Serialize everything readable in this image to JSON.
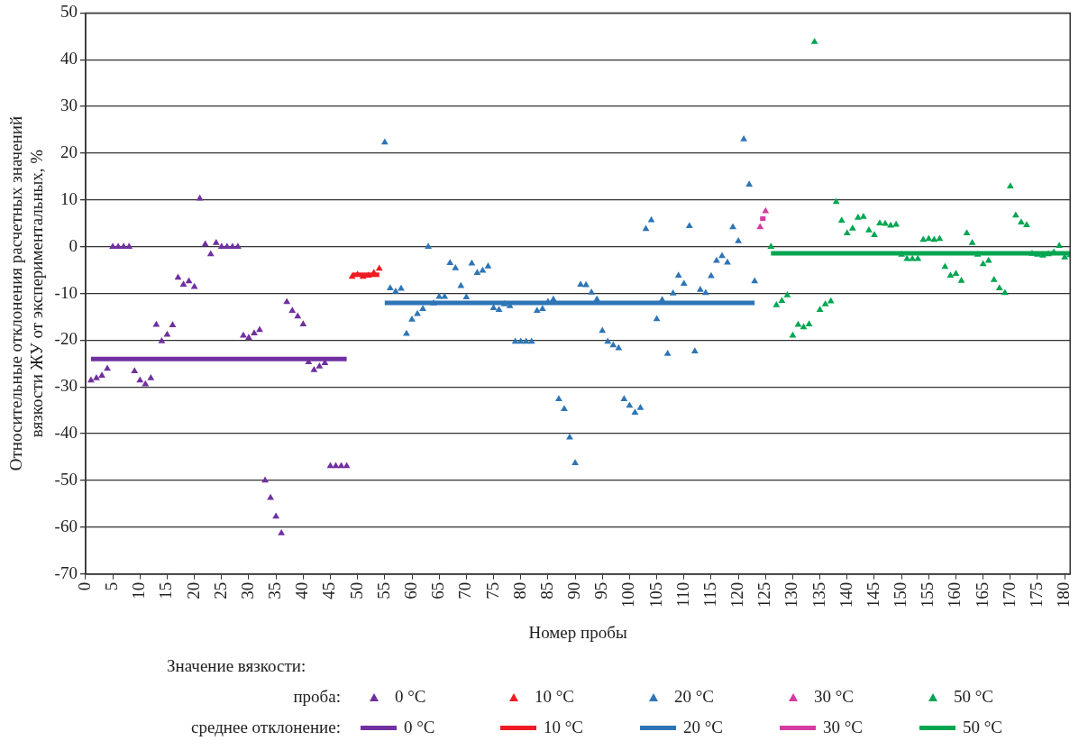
{
  "chart_data": {
    "type": "scatter",
    "xlabel": "Номер пробы",
    "ylabel": "Относительные отклонения расчетных значений вязкости ЖУ от экспериментальных, %",
    "legend_title": "Значение вязкости:",
    "annotations": [
      "проба:",
      "среднее отклонение:"
    ],
    "xlim": [
      0,
      181
    ],
    "xticks": [
      0,
      5,
      10,
      15,
      20,
      25,
      30,
      35,
      40,
      45,
      50,
      55,
      60,
      65,
      70,
      75,
      80,
      85,
      90,
      95,
      100,
      105,
      110,
      115,
      120,
      125,
      130,
      135,
      140,
      145,
      150,
      155,
      160,
      165,
      170,
      175,
      180
    ],
    "ylim": [
      -70,
      50
    ],
    "yticks": [
      -70,
      -60,
      -50,
      -40,
      -30,
      -20,
      -10,
      0,
      10,
      20,
      30,
      40,
      50
    ],
    "grid": "y",
    "legend": "bottom",
    "marker": "triangle",
    "series": [
      {
        "name": "0 °C",
        "type": "scatter",
        "color": "#7030a0",
        "x": [
          1,
          2,
          3,
          4,
          5,
          6,
          7,
          8,
          9,
          10,
          11,
          12,
          13,
          14,
          15,
          16,
          17,
          18,
          19,
          20,
          21,
          22,
          23,
          24,
          25,
          26,
          27,
          28,
          29,
          30,
          31,
          32,
          33,
          34,
          35,
          36,
          37,
          38,
          39,
          40,
          41,
          42,
          43,
          44,
          45,
          46,
          47,
          48
        ],
        "values": [
          -28.6,
          -28.1,
          -27.6,
          -26.1,
          0,
          0,
          0,
          0,
          -26.6,
          -28.6,
          -29.4,
          -28.1,
          -16.7,
          -20.2,
          -18.8,
          -16.8,
          -6.6,
          -8.1,
          -7.4,
          -8.6,
          10.3,
          0.5,
          -1.6,
          0.8,
          0,
          0,
          0,
          0,
          -19,
          -19.5,
          -18.5,
          -17.8,
          -50,
          -53.7,
          -57.7,
          -61.3,
          -11.8,
          -13.7,
          -14.9,
          -16.6,
          -24.7,
          -26.4,
          -25.6,
          -24.9,
          -46.9,
          -46.9,
          -46.9,
          -46.9
        ]
      },
      {
        "name": "10 °C",
        "type": "scatter",
        "color": "#ee1c25",
        "x": [
          49,
          50,
          51,
          52,
          53,
          54
        ],
        "values": [
          -6.4,
          -6,
          -6.4,
          -6.2,
          -5.6,
          -4.7
        ]
      },
      {
        "name": "20 °C",
        "type": "scatter",
        "color": "#2e75b6",
        "x": [
          55,
          56,
          57,
          58,
          59,
          60,
          61,
          62,
          63,
          64,
          65,
          66,
          67,
          68,
          69,
          70,
          71,
          72,
          73,
          74,
          75,
          76,
          77,
          78,
          79,
          80,
          81,
          82,
          83,
          84,
          85,
          86,
          87,
          88,
          89,
          90,
          91,
          92,
          93,
          94,
          95,
          96,
          97,
          98,
          99,
          100,
          101,
          102,
          103,
          104,
          105,
          106,
          107,
          108,
          109,
          110,
          111,
          112,
          113,
          114,
          115,
          116,
          117,
          118,
          119,
          120,
          121,
          122,
          123
        ],
        "values": [
          22.3,
          -8.9,
          -9.6,
          -9,
          -18.6,
          -15.6,
          -14.4,
          -13.3,
          0,
          -12.1,
          -10.7,
          -10.7,
          -3.5,
          -4.6,
          -8.4,
          -10.8,
          -3.6,
          -5.6,
          -5.1,
          -4.2,
          -13.1,
          -13.5,
          -12.3,
          -12.7,
          -20.3,
          -20.3,
          -20.3,
          -20.3,
          -13.7,
          -13.3,
          -11.8,
          -11.3,
          -32.6,
          -34.7,
          -40.8,
          -46.3,
          -8.1,
          -8.2,
          -9.8,
          -11.3,
          -18,
          -20.3,
          -21.1,
          -21.7,
          -32.6,
          -34,
          -35.5,
          -34.5,
          3.8,
          5.7,
          -15.5,
          -11.4,
          -22.9,
          -10,
          -6.2,
          -7.9,
          4.4,
          -22.4,
          -9.2,
          -9.9,
          -6.3,
          -3,
          -2,
          -3.4,
          4.2,
          1.2,
          23,
          13.3,
          -7.4
        ]
      },
      {
        "name": "30 °C",
        "type": "scatter",
        "color": "#d63ba0",
        "x": [
          124,
          125
        ],
        "values": [
          4.2,
          7.6
        ]
      },
      {
        "name": "50 °C",
        "type": "scatter",
        "color": "#00a651",
        "x": [
          126,
          127,
          128,
          129,
          130,
          131,
          132,
          133,
          134,
          135,
          136,
          137,
          138,
          139,
          140,
          141,
          142,
          143,
          144,
          145,
          146,
          147,
          148,
          149,
          150,
          151,
          152,
          153,
          154,
          155,
          156,
          157,
          158,
          159,
          160,
          161,
          162,
          163,
          164,
          165,
          166,
          167,
          168,
          169,
          170,
          171,
          172,
          173,
          174,
          175,
          176,
          177,
          178,
          179,
          180,
          181
        ],
        "values": [
          0,
          -12.5,
          -11.6,
          -10.4,
          -19,
          -16.7,
          -17.2,
          -16.6,
          43.8,
          -13.5,
          -12.3,
          -11.7,
          9.6,
          5.6,
          2.9,
          3.9,
          6.2,
          6.4,
          3.5,
          2.5,
          5,
          4.9,
          4.5,
          4.7,
          -1.7,
          -2.6,
          -2.6,
          -2.6,
          1.5,
          1.7,
          1.5,
          1.7,
          -4.3,
          -6.2,
          -5.8,
          -7.3,
          2.9,
          0.8,
          -1.7,
          -3.7,
          -3,
          -7.1,
          -8.9,
          -9.9,
          12.9,
          6.7,
          5.2,
          4.6,
          -1.5,
          -1.7,
          -1.9,
          -1.6,
          -1.2,
          0.2,
          -2.3,
          -1.8
        ]
      },
      {
        "name": "0 °C",
        "type": "line",
        "marker": "none",
        "line_style": "solid",
        "color": "#7030a0",
        "x": [
          1,
          48
        ],
        "values": [
          -24,
          -24
        ]
      },
      {
        "name": "10 °C",
        "type": "line",
        "marker": "none",
        "line_style": "solid",
        "color": "#ee1c25",
        "x": [
          49,
          54
        ],
        "values": [
          -6,
          -6
        ]
      },
      {
        "name": "20 °C",
        "type": "line",
        "marker": "none",
        "line_style": "solid",
        "color": "#2e75b6",
        "x": [
          55,
          123
        ],
        "values": [
          -12,
          -12
        ]
      },
      {
        "name": "30 °C",
        "type": "line",
        "marker": "none",
        "line_style": "solid",
        "color": "#d63ba0",
        "x": [
          124,
          125
        ],
        "values": [
          6,
          6
        ]
      },
      {
        "name": "50 °C",
        "type": "line",
        "marker": "none",
        "line_style": "solid",
        "color": "#00a651",
        "x": [
          126,
          181
        ],
        "values": [
          -1.4,
          -1.4
        ]
      }
    ]
  }
}
